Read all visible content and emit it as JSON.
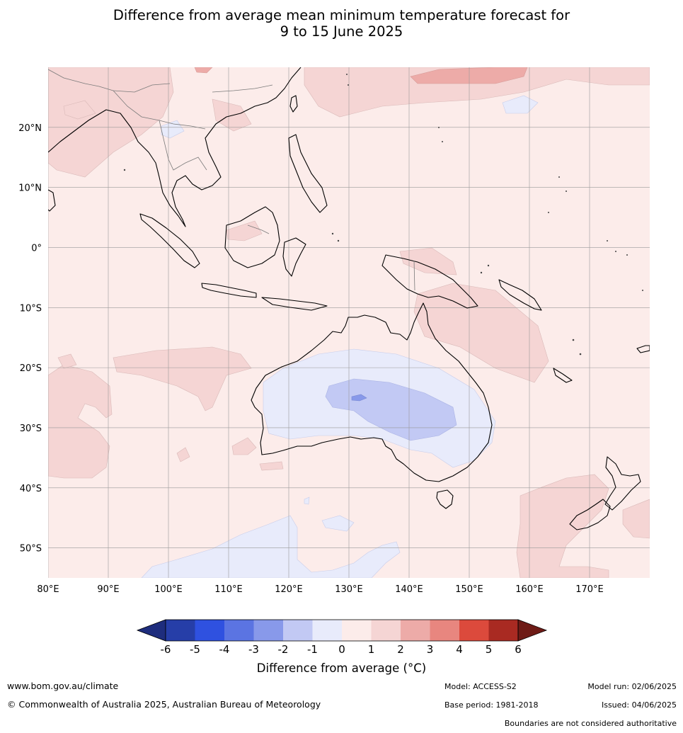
{
  "title": {
    "line1": "Difference from average mean minimum temperature forecast for",
    "line2": "9 to 15 June 2025"
  },
  "map": {
    "lon_labels": [
      "80°E",
      "90°E",
      "100°E",
      "110°E",
      "120°E",
      "130°E",
      "140°E",
      "150°E",
      "160°E",
      "170°E"
    ],
    "lat_labels": [
      "20°N",
      "10°N",
      "0°",
      "10°S",
      "20°S",
      "30°S",
      "40°S",
      "50°S"
    ],
    "lon_range": [
      80,
      180
    ],
    "lat_range": [
      -55,
      30
    ],
    "gridlines": true
  },
  "colorbar": {
    "ticks": [
      "-6",
      "-5",
      "-4",
      "-3",
      "-2",
      "-1",
      "0",
      "1",
      "2",
      "3",
      "4",
      "5",
      "6"
    ],
    "colors": [
      "#1e2d7d",
      "#263ea8",
      "#2f51e0",
      "#5b74e2",
      "#8899ea",
      "#c2c9f4",
      "#e8ebfb",
      "#fcecea",
      "#f5d5d4",
      "#edaba8",
      "#e8867f",
      "#dc4a3c",
      "#a92a22",
      "#6e1b16"
    ],
    "title": "Difference from average (°C)"
  },
  "footer": {
    "website": "www.bom.gov.au/climate",
    "copyright": "© Commonwealth of Australia 2025, Australian Bureau of Meteorology",
    "model": "Model: ACCESS-S2",
    "base_period": "Base period: 1981-2018",
    "model_run": "Model run: 02/06/2025",
    "issued": "Issued: 04/06/2025",
    "disclaimer": "Boundaries are not considered authoritative"
  }
}
